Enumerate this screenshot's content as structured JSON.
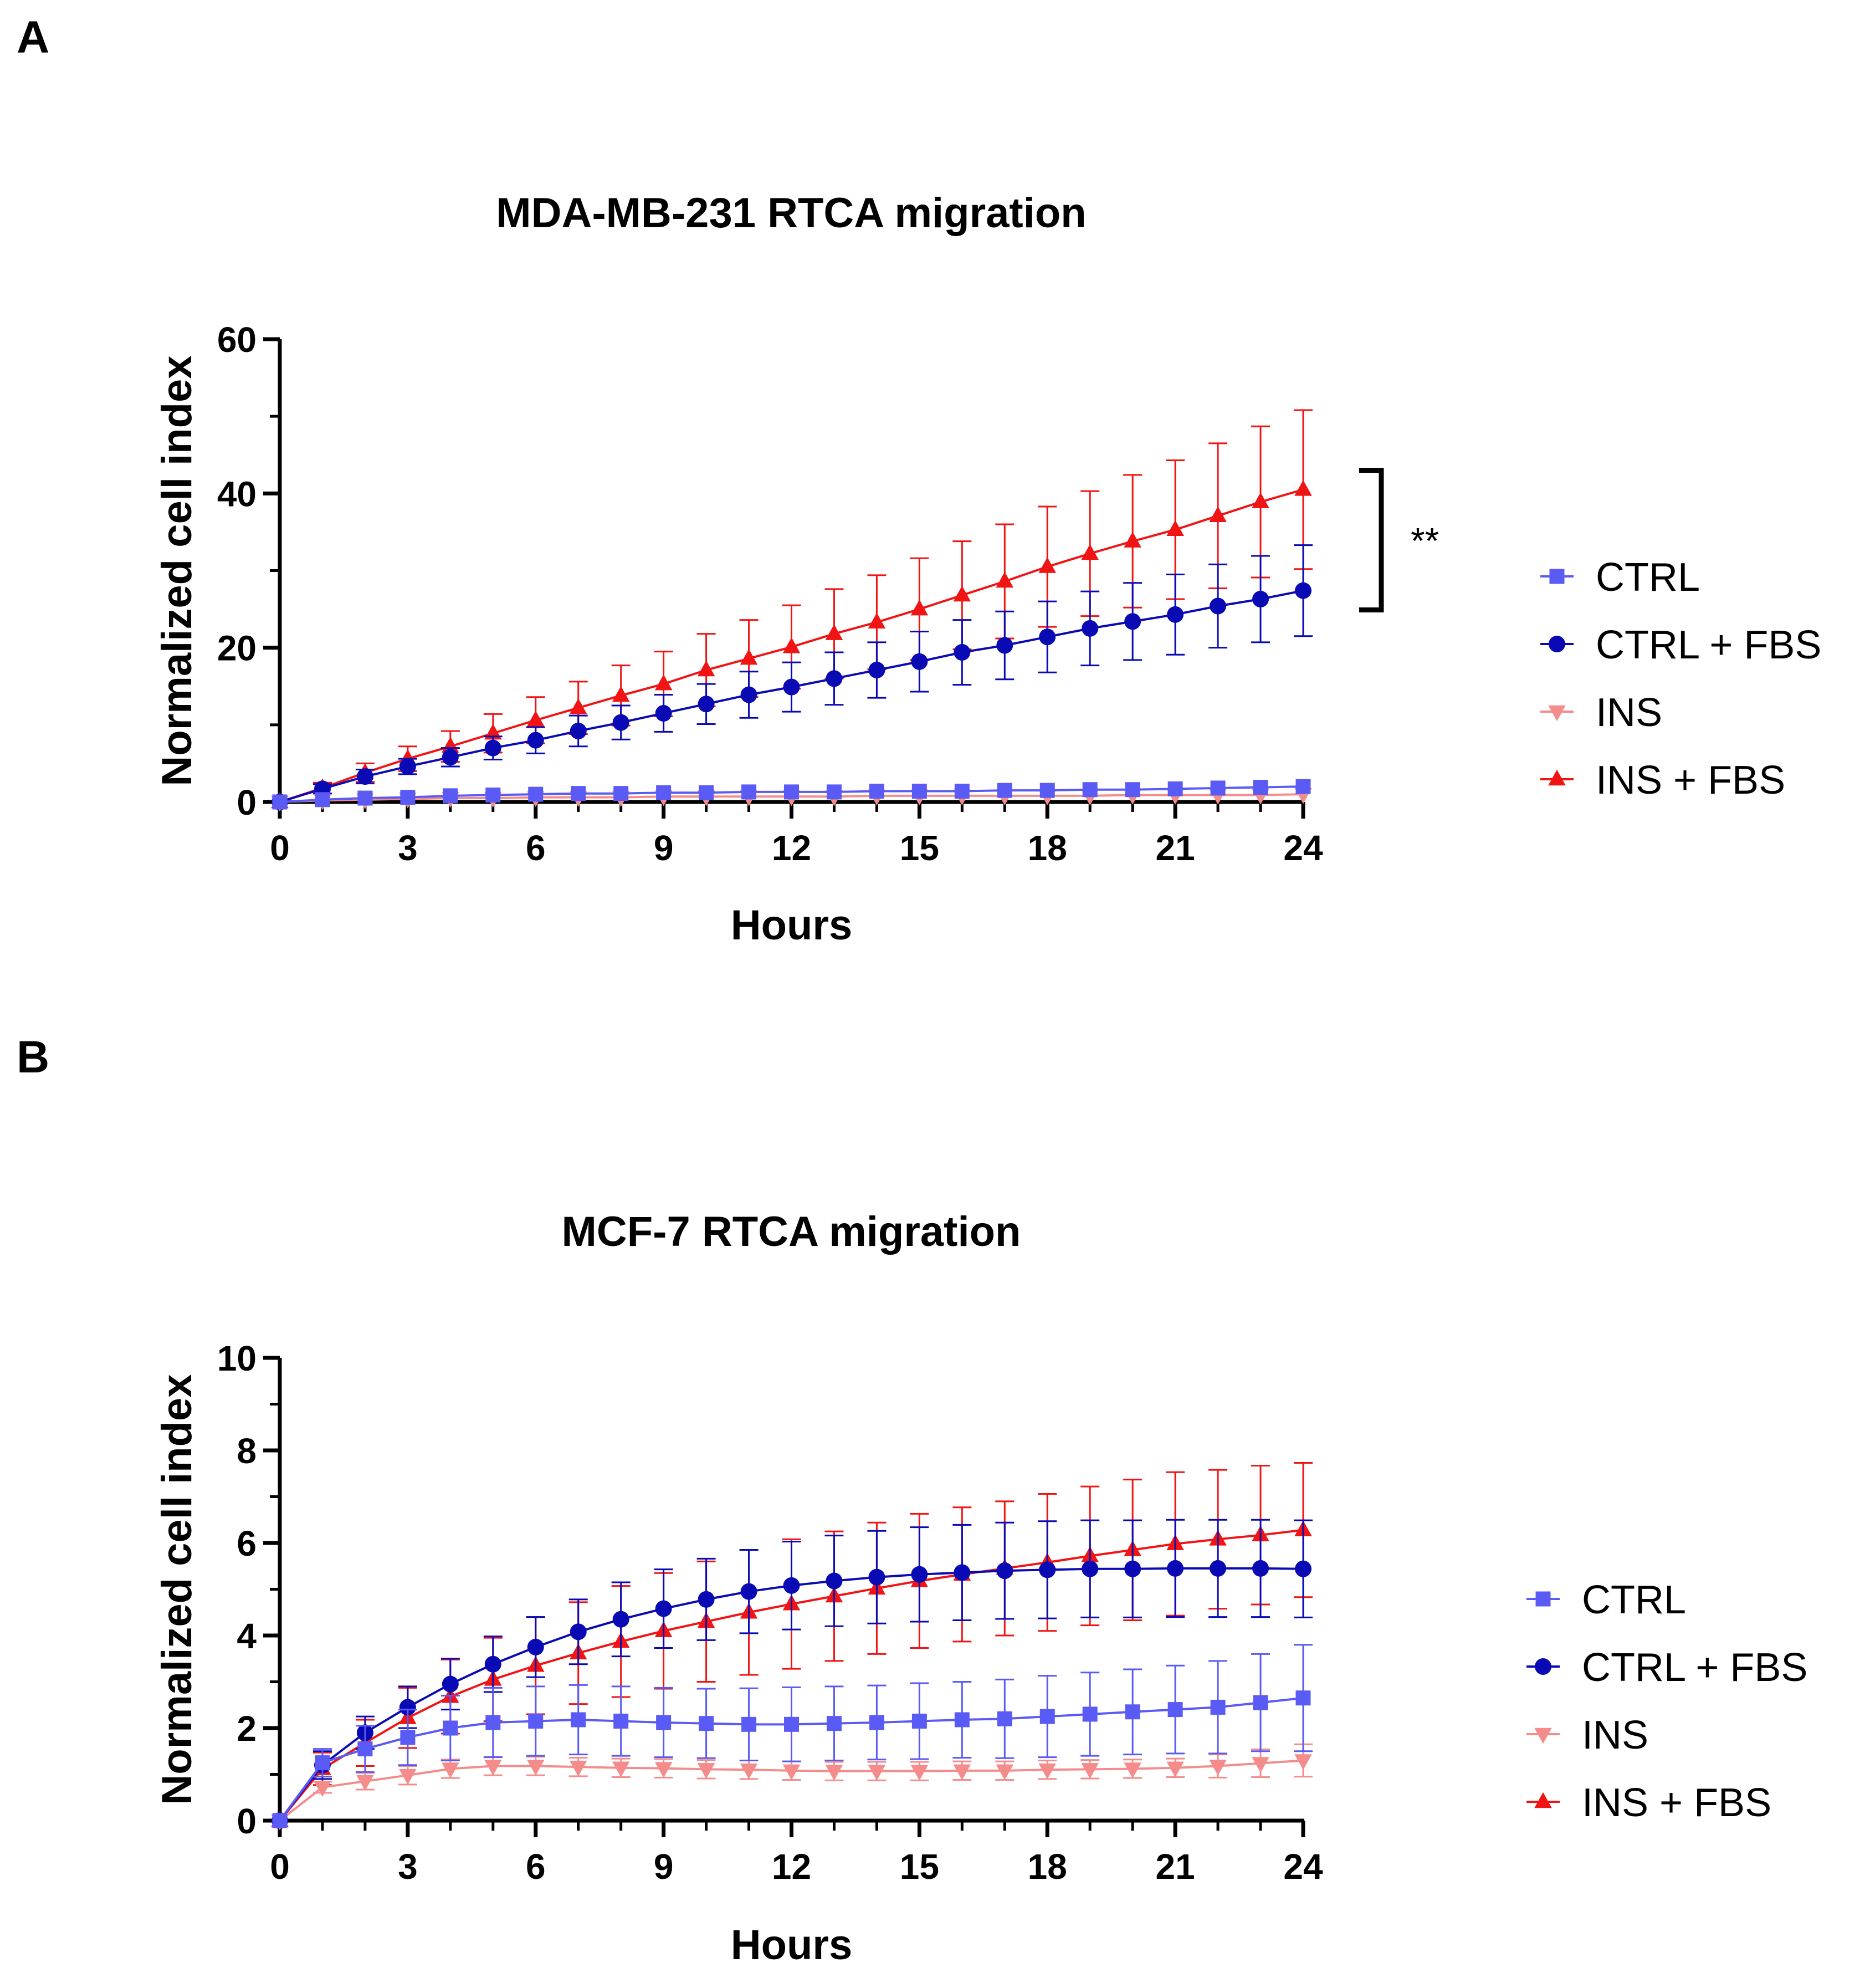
{
  "panels": [
    {
      "label": "A"
    },
    {
      "label": "B"
    }
  ],
  "colors": {
    "ctrl": "#5a5af5",
    "ctrl_fbs": "#0a0ab4",
    "ins": "#f58c8c",
    "ins_fbs": "#f01414",
    "axis": "#000000"
  },
  "chart_data": [
    {
      "type": "line",
      "title": "MDA-MB-231 RTCA migration",
      "xlabel": "Hours",
      "ylabel": "Normalized cell index",
      "xlim": [
        0,
        24
      ],
      "ylim": [
        0,
        60
      ],
      "xticks": [
        0,
        3,
        6,
        9,
        12,
        15,
        18,
        21,
        24
      ],
      "yticks": [
        0,
        20,
        40,
        60
      ],
      "x_minor_step": 1,
      "y_minor_step": 10,
      "grid": false,
      "legend_position": "right",
      "annotation": {
        "text": "**",
        "from_series": "CTRL + FBS",
        "to_series": "INS + FBS"
      },
      "x": [
        0,
        1,
        2,
        3,
        4,
        5,
        6,
        7,
        8,
        9,
        10,
        11,
        12,
        13,
        14,
        15,
        16,
        17,
        18,
        19,
        20,
        21,
        22,
        23,
        24
      ],
      "series": [
        {
          "name": "CTRL",
          "marker": "square",
          "color": "#5a5af5",
          "values": [
            0,
            0.3,
            0.5,
            0.6,
            0.8,
            0.9,
            1.0,
            1.1,
            1.1,
            1.2,
            1.2,
            1.3,
            1.3,
            1.3,
            1.4,
            1.4,
            1.4,
            1.5,
            1.5,
            1.6,
            1.6,
            1.7,
            1.8,
            1.9,
            2.0
          ],
          "errors": [
            0,
            0,
            0,
            0,
            0,
            0,
            0,
            0,
            0,
            0,
            0,
            0,
            0,
            0,
            0,
            0,
            0,
            0,
            0,
            0,
            0,
            0,
            0,
            0,
            0
          ]
        },
        {
          "name": "CTRL + FBS",
          "marker": "circle",
          "color": "#0a0ab4",
          "values": [
            0,
            1.7,
            3.3,
            4.6,
            5.8,
            7.0,
            8.0,
            9.2,
            10.3,
            11.5,
            12.7,
            13.9,
            14.9,
            16.0,
            17.1,
            18.2,
            19.4,
            20.3,
            21.4,
            22.5,
            23.4,
            24.3,
            25.4,
            26.3,
            27.4
          ],
          "errors": [
            0,
            0.6,
            0.9,
            1.0,
            1.2,
            1.5,
            1.7,
            2.0,
            2.2,
            2.4,
            2.6,
            3.0,
            3.2,
            3.4,
            3.6,
            3.9,
            4.2,
            4.4,
            4.6,
            4.8,
            5.0,
            5.2,
            5.4,
            5.6,
            5.9
          ]
        },
        {
          "name": "INS",
          "marker": "triangle-down",
          "color": "#f58c8c",
          "values": [
            0,
            0.2,
            0.3,
            0.4,
            0.5,
            0.5,
            0.6,
            0.6,
            0.6,
            0.7,
            0.7,
            0.7,
            0.7,
            0.7,
            0.8,
            0.8,
            0.8,
            0.8,
            0.8,
            0.8,
            0.9,
            0.9,
            0.9,
            0.9,
            1.0
          ],
          "errors": [
            0,
            0,
            0,
            0,
            0,
            0,
            0,
            0,
            0,
            0,
            0,
            0,
            0,
            0,
            0,
            0,
            0,
            0,
            0,
            0,
            0,
            0,
            0,
            0,
            0
          ]
        },
        {
          "name": "INS + FBS",
          "marker": "triangle-up",
          "color": "#f01414",
          "values": [
            0,
            1.8,
            3.8,
            5.6,
            7.2,
            8.9,
            10.6,
            12.2,
            13.8,
            15.3,
            17.1,
            18.6,
            20.1,
            21.8,
            23.3,
            25.0,
            26.8,
            28.6,
            30.5,
            32.2,
            33.8,
            35.3,
            37.1,
            38.9,
            40.5
          ],
          "errors": [
            0,
            0.7,
            1.2,
            1.6,
            2.0,
            2.5,
            3.0,
            3.4,
            3.9,
            4.2,
            4.7,
            5.0,
            5.4,
            5.8,
            6.1,
            6.6,
            7.0,
            7.4,
            7.8,
            8.1,
            8.6,
            9.0,
            9.4,
            9.8,
            10.3
          ]
        }
      ]
    },
    {
      "type": "line",
      "title": "MCF-7 RTCA migration",
      "xlabel": "Hours",
      "ylabel": "Normalized cell index",
      "xlim": [
        0,
        24
      ],
      "ylim": [
        0,
        10
      ],
      "xticks": [
        0,
        3,
        6,
        9,
        12,
        15,
        18,
        21,
        24
      ],
      "yticks": [
        0,
        2,
        4,
        6,
        8,
        10
      ],
      "x_minor_step": 1,
      "y_minor_step": 1,
      "grid": false,
      "legend_position": "right",
      "x": [
        0,
        1,
        2,
        3,
        4,
        5,
        6,
        7,
        8,
        9,
        10,
        11,
        12,
        13,
        14,
        15,
        16,
        17,
        18,
        19,
        20,
        21,
        22,
        23,
        24
      ],
      "series": [
        {
          "name": "CTRL",
          "marker": "square",
          "color": "#5a5af5",
          "values": [
            0,
            1.25,
            1.55,
            1.8,
            2.0,
            2.12,
            2.15,
            2.18,
            2.15,
            2.12,
            2.1,
            2.08,
            2.08,
            2.1,
            2.12,
            2.15,
            2.18,
            2.2,
            2.25,
            2.3,
            2.35,
            2.4,
            2.45,
            2.55,
            2.65
          ],
          "errors": [
            0,
            0.3,
            0.5,
            0.6,
            0.7,
            0.75,
            0.75,
            0.75,
            0.75,
            0.75,
            0.75,
            0.78,
            0.8,
            0.8,
            0.8,
            0.82,
            0.82,
            0.85,
            0.88,
            0.9,
            0.92,
            0.95,
            1.0,
            1.05,
            1.15
          ]
        },
        {
          "name": "CTRL + FBS",
          "marker": "circle",
          "color": "#0a0ab4",
          "values": [
            0,
            1.2,
            1.9,
            2.45,
            2.95,
            3.38,
            3.75,
            4.08,
            4.35,
            4.58,
            4.78,
            4.95,
            5.08,
            5.18,
            5.26,
            5.32,
            5.36,
            5.4,
            5.42,
            5.44,
            5.44,
            5.45,
            5.45,
            5.45,
            5.44
          ],
          "errors": [
            0,
            0.3,
            0.35,
            0.45,
            0.55,
            0.6,
            0.65,
            0.7,
            0.8,
            0.85,
            0.88,
            0.9,
            0.95,
            0.98,
            1.0,
            1.02,
            1.03,
            1.04,
            1.05,
            1.05,
            1.05,
            1.05,
            1.05,
            1.05,
            1.05
          ]
        },
        {
          "name": "INS",
          "marker": "triangle-down",
          "color": "#f58c8c",
          "values": [
            0,
            0.72,
            0.85,
            0.98,
            1.12,
            1.18,
            1.18,
            1.16,
            1.14,
            1.13,
            1.11,
            1.1,
            1.08,
            1.07,
            1.07,
            1.07,
            1.08,
            1.08,
            1.1,
            1.11,
            1.12,
            1.14,
            1.18,
            1.24,
            1.3
          ],
          "errors": [
            0,
            0.12,
            0.18,
            0.2,
            0.2,
            0.2,
            0.2,
            0.2,
            0.2,
            0.2,
            0.2,
            0.2,
            0.2,
            0.2,
            0.2,
            0.2,
            0.2,
            0.2,
            0.2,
            0.2,
            0.2,
            0.2,
            0.25,
            0.3,
            0.35
          ]
        },
        {
          "name": "INS + FBS",
          "marker": "triangle-up",
          "color": "#f01414",
          "values": [
            0,
            1.12,
            1.68,
            2.22,
            2.68,
            3.05,
            3.35,
            3.62,
            3.87,
            4.1,
            4.3,
            4.5,
            4.68,
            4.85,
            5.02,
            5.18,
            5.32,
            5.45,
            5.58,
            5.72,
            5.85,
            5.98,
            6.08,
            6.17,
            6.28
          ],
          "errors": [
            0,
            0.35,
            0.5,
            0.65,
            0.8,
            0.9,
            1.05,
            1.1,
            1.2,
            1.25,
            1.3,
            1.35,
            1.4,
            1.4,
            1.42,
            1.45,
            1.45,
            1.45,
            1.48,
            1.5,
            1.52,
            1.55,
            1.5,
            1.5,
            1.45
          ]
        }
      ]
    }
  ]
}
